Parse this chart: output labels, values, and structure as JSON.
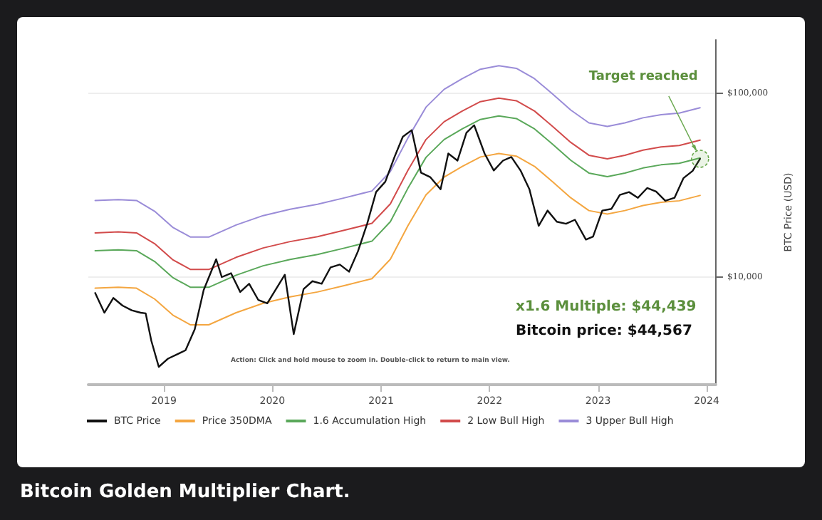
{
  "chart_data": {
    "type": "line",
    "title": "Bitcoin Golden Multiplier Chart.",
    "ylabel": "BTC Price (USD)",
    "annotations": [
      {
        "text": "Target reached",
        "x": "2023-12-10",
        "y": 44000
      },
      "x1.6 Multiple: $44,439",
      "Bitcoin price: $44,567",
      "Action: Click and hold mouse to zoom in.  Double-click to return to main view."
    ],
    "log": "y",
    "grid": "y",
    "legend": "bottom left",
    "marker": "none",
    "line_style": "solid",
    "xlim": [
      "2018-04-22",
      "2024-02-01"
    ],
    "xticks": [
      "2019",
      "2020",
      "2021",
      "2022",
      "2023",
      "2024"
    ],
    "ylim": [
      2600,
      195000
    ],
    "yticks": [
      {
        "value": 10000,
        "label": "$10,000"
      },
      {
        "value": 100000,
        "label": "$100,000"
      }
    ],
    "series": [
      {
        "name": "BTC Price",
        "color": "#111111",
        "x": [
          "2018-05-15",
          "2018-06-15",
          "2018-07-15",
          "2018-08-15",
          "2018-09-15",
          "2018-10-15",
          "2018-11-01",
          "2018-11-20",
          "2018-12-15",
          "2019-01-15",
          "2019-02-15",
          "2019-03-15",
          "2019-04-15",
          "2019-05-15",
          "2019-06-26",
          "2019-07-15",
          "2019-08-15",
          "2019-09-15",
          "2019-10-15",
          "2019-11-15",
          "2019-12-15",
          "2020-02-12",
          "2020-03-13",
          "2020-04-15",
          "2020-05-15",
          "2020-06-15",
          "2020-07-15",
          "2020-08-15",
          "2020-09-15",
          "2020-10-15",
          "2020-11-15",
          "2020-12-15",
          "2021-01-15",
          "2021-02-15",
          "2021-03-15",
          "2021-04-14",
          "2021-05-15",
          "2021-06-15",
          "2021-07-20",
          "2021-08-15",
          "2021-09-15",
          "2021-10-15",
          "2021-11-10",
          "2021-12-15",
          "2022-01-15",
          "2022-02-15",
          "2022-03-15",
          "2022-04-15",
          "2022-05-15",
          "2022-06-15",
          "2022-07-15",
          "2022-08-15",
          "2022-09-15",
          "2022-10-15",
          "2022-11-21",
          "2022-12-15",
          "2023-01-15",
          "2023-02-15",
          "2023-03-15",
          "2023-04-15",
          "2023-05-15",
          "2023-06-15",
          "2023-07-15",
          "2023-08-15",
          "2023-09-15",
          "2023-10-15",
          "2023-11-15",
          "2023-12-10"
        ],
        "values": [
          8200,
          6400,
          7700,
          7000,
          6600,
          6400,
          6350,
          4500,
          3250,
          3600,
          3800,
          4000,
          5200,
          8500,
          12500,
          10000,
          10500,
          8300,
          9200,
          7500,
          7200,
          10300,
          4900,
          8600,
          9500,
          9200,
          11300,
          11700,
          10700,
          13800,
          19500,
          29000,
          33000,
          45000,
          58000,
          63000,
          37000,
          35000,
          30000,
          47000,
          43000,
          61000,
          67000,
          47000,
          38000,
          43000,
          45000,
          38000,
          30000,
          19000,
          23000,
          20000,
          19500,
          20500,
          16000,
          16600,
          23000,
          23500,
          28000,
          29000,
          27000,
          30500,
          29200,
          26000,
          27000,
          34500,
          37800,
          44000
        ]
      },
      {
        "name": "Price 350DMA",
        "color": "#f4a640",
        "x": [
          "2018-05-15",
          "2018-08-01",
          "2018-10-01",
          "2018-12-01",
          "2019-02-01",
          "2019-04-01",
          "2019-06-01",
          "2019-09-01",
          "2019-12-01",
          "2020-03-01",
          "2020-06-01",
          "2020-09-01",
          "2020-12-01",
          "2021-02-01",
          "2021-04-01",
          "2021-06-01",
          "2021-08-01",
          "2021-10-01",
          "2021-12-01",
          "2022-02-01",
          "2022-04-01",
          "2022-06-01",
          "2022-08-01",
          "2022-10-01",
          "2022-12-01",
          "2023-02-01",
          "2023-04-01",
          "2023-06-01",
          "2023-08-01",
          "2023-10-01",
          "2023-12-10"
        ],
        "values": [
          8700,
          8800,
          8700,
          7600,
          6200,
          5500,
          5500,
          6400,
          7200,
          7800,
          8300,
          9000,
          9800,
          12500,
          19000,
          28000,
          35000,
          40000,
          45000,
          47000,
          45500,
          40000,
          33000,
          27000,
          23000,
          22000,
          23000,
          24500,
          25500,
          26000,
          27800
        ]
      },
      {
        "name": "1.6 Accumulation High",
        "color": "#5aa85a",
        "x": [
          "2018-05-15",
          "2018-08-01",
          "2018-10-01",
          "2018-12-01",
          "2019-02-01",
          "2019-04-01",
          "2019-06-01",
          "2019-09-01",
          "2019-12-01",
          "2020-03-01",
          "2020-06-01",
          "2020-09-01",
          "2020-12-01",
          "2021-02-01",
          "2021-04-01",
          "2021-06-01",
          "2021-08-01",
          "2021-10-01",
          "2021-12-01",
          "2022-02-01",
          "2022-04-01",
          "2022-06-01",
          "2022-08-01",
          "2022-10-01",
          "2022-12-01",
          "2023-02-01",
          "2023-04-01",
          "2023-06-01",
          "2023-08-01",
          "2023-10-01",
          "2023-12-10"
        ],
        "values": [
          13920,
          14080,
          13920,
          12160,
          9920,
          8800,
          8800,
          10240,
          11520,
          12480,
          13280,
          14400,
          15680,
          20000,
          30400,
          44800,
          56000,
          64000,
          72000,
          75200,
          72800,
          64000,
          52800,
          43200,
          36800,
          35200,
          36800,
          39200,
          40800,
          41600,
          44439
        ]
      },
      {
        "name": "2 Low Bull High",
        "color": "#d24b4b",
        "x": [
          "2018-05-15",
          "2018-08-01",
          "2018-10-01",
          "2018-12-01",
          "2019-02-01",
          "2019-04-01",
          "2019-06-01",
          "2019-09-01",
          "2019-12-01",
          "2020-03-01",
          "2020-06-01",
          "2020-09-01",
          "2020-12-01",
          "2021-02-01",
          "2021-04-01",
          "2021-06-01",
          "2021-08-01",
          "2021-10-01",
          "2021-12-01",
          "2022-02-01",
          "2022-04-01",
          "2022-06-01",
          "2022-08-01",
          "2022-10-01",
          "2022-12-01",
          "2023-02-01",
          "2023-04-01",
          "2023-06-01",
          "2023-08-01",
          "2023-10-01",
          "2023-12-10"
        ],
        "values": [
          17400,
          17600,
          17400,
          15200,
          12400,
          11000,
          11000,
          12800,
          14400,
          15600,
          16600,
          18000,
          19600,
          25000,
          38000,
          56000,
          70000,
          80000,
          90000,
          94000,
          91000,
          80000,
          66000,
          54000,
          46000,
          44000,
          46000,
          49000,
          51000,
          52000,
          55600
        ]
      },
      {
        "name": "3 Upper Bull High",
        "color": "#9a8cd8",
        "x": [
          "2018-05-15",
          "2018-08-01",
          "2018-10-01",
          "2018-12-01",
          "2019-02-01",
          "2019-04-01",
          "2019-06-01",
          "2019-09-01",
          "2019-12-01",
          "2020-03-01",
          "2020-06-01",
          "2020-09-01",
          "2020-12-01",
          "2021-02-01",
          "2021-04-01",
          "2021-06-01",
          "2021-08-01",
          "2021-10-01",
          "2021-12-01",
          "2022-02-01",
          "2022-04-01",
          "2022-06-01",
          "2022-08-01",
          "2022-10-01",
          "2022-12-01",
          "2023-02-01",
          "2023-04-01",
          "2023-06-01",
          "2023-08-01",
          "2023-10-01",
          "2023-12-10"
        ],
        "values": [
          26100,
          26400,
          26100,
          22800,
          18600,
          16500,
          16500,
          19200,
          21600,
          23400,
          24900,
          27000,
          29400,
          37500,
          57000,
          84000,
          105000,
          120000,
          135000,
          141000,
          136500,
          120000,
          99000,
          81000,
          69000,
          66000,
          69000,
          73500,
          76500,
          78000,
          83400
        ]
      }
    ]
  }
}
